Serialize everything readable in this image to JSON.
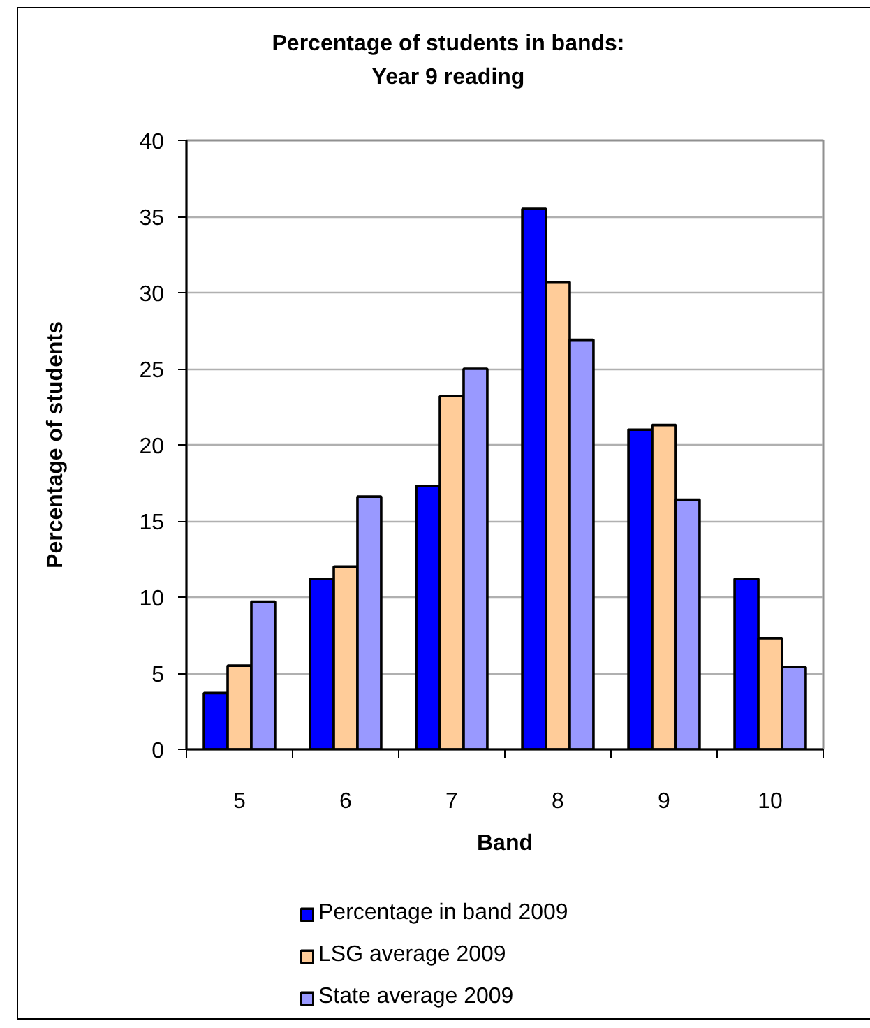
{
  "chart_data": {
    "type": "bar",
    "title": "Percentage of students in bands: Year 9 reading",
    "xlabel": "Band",
    "ylabel": "Percentage of students",
    "categories": [
      "5",
      "6",
      "7",
      "8",
      "9",
      "10"
    ],
    "series": [
      {
        "name": "Percentage in band 2009",
        "color": "#0000ff",
        "values": [
          3.7,
          11.2,
          17.3,
          35.5,
          21.0,
          11.2
        ]
      },
      {
        "name": "LSG average 2009",
        "color": "#ffcc99",
        "values": [
          5.5,
          12.0,
          23.2,
          30.7,
          21.3,
          7.3
        ]
      },
      {
        "name": "State average 2009",
        "color": "#9999ff",
        "values": [
          9.7,
          16.6,
          25.0,
          26.9,
          16.4,
          5.4
        ]
      }
    ],
    "ylim": [
      0,
      40
    ],
    "yticks": [
      0,
      5,
      10,
      15,
      20,
      25,
      30,
      35,
      40
    ],
    "grid": "y",
    "legend": "bottom"
  }
}
